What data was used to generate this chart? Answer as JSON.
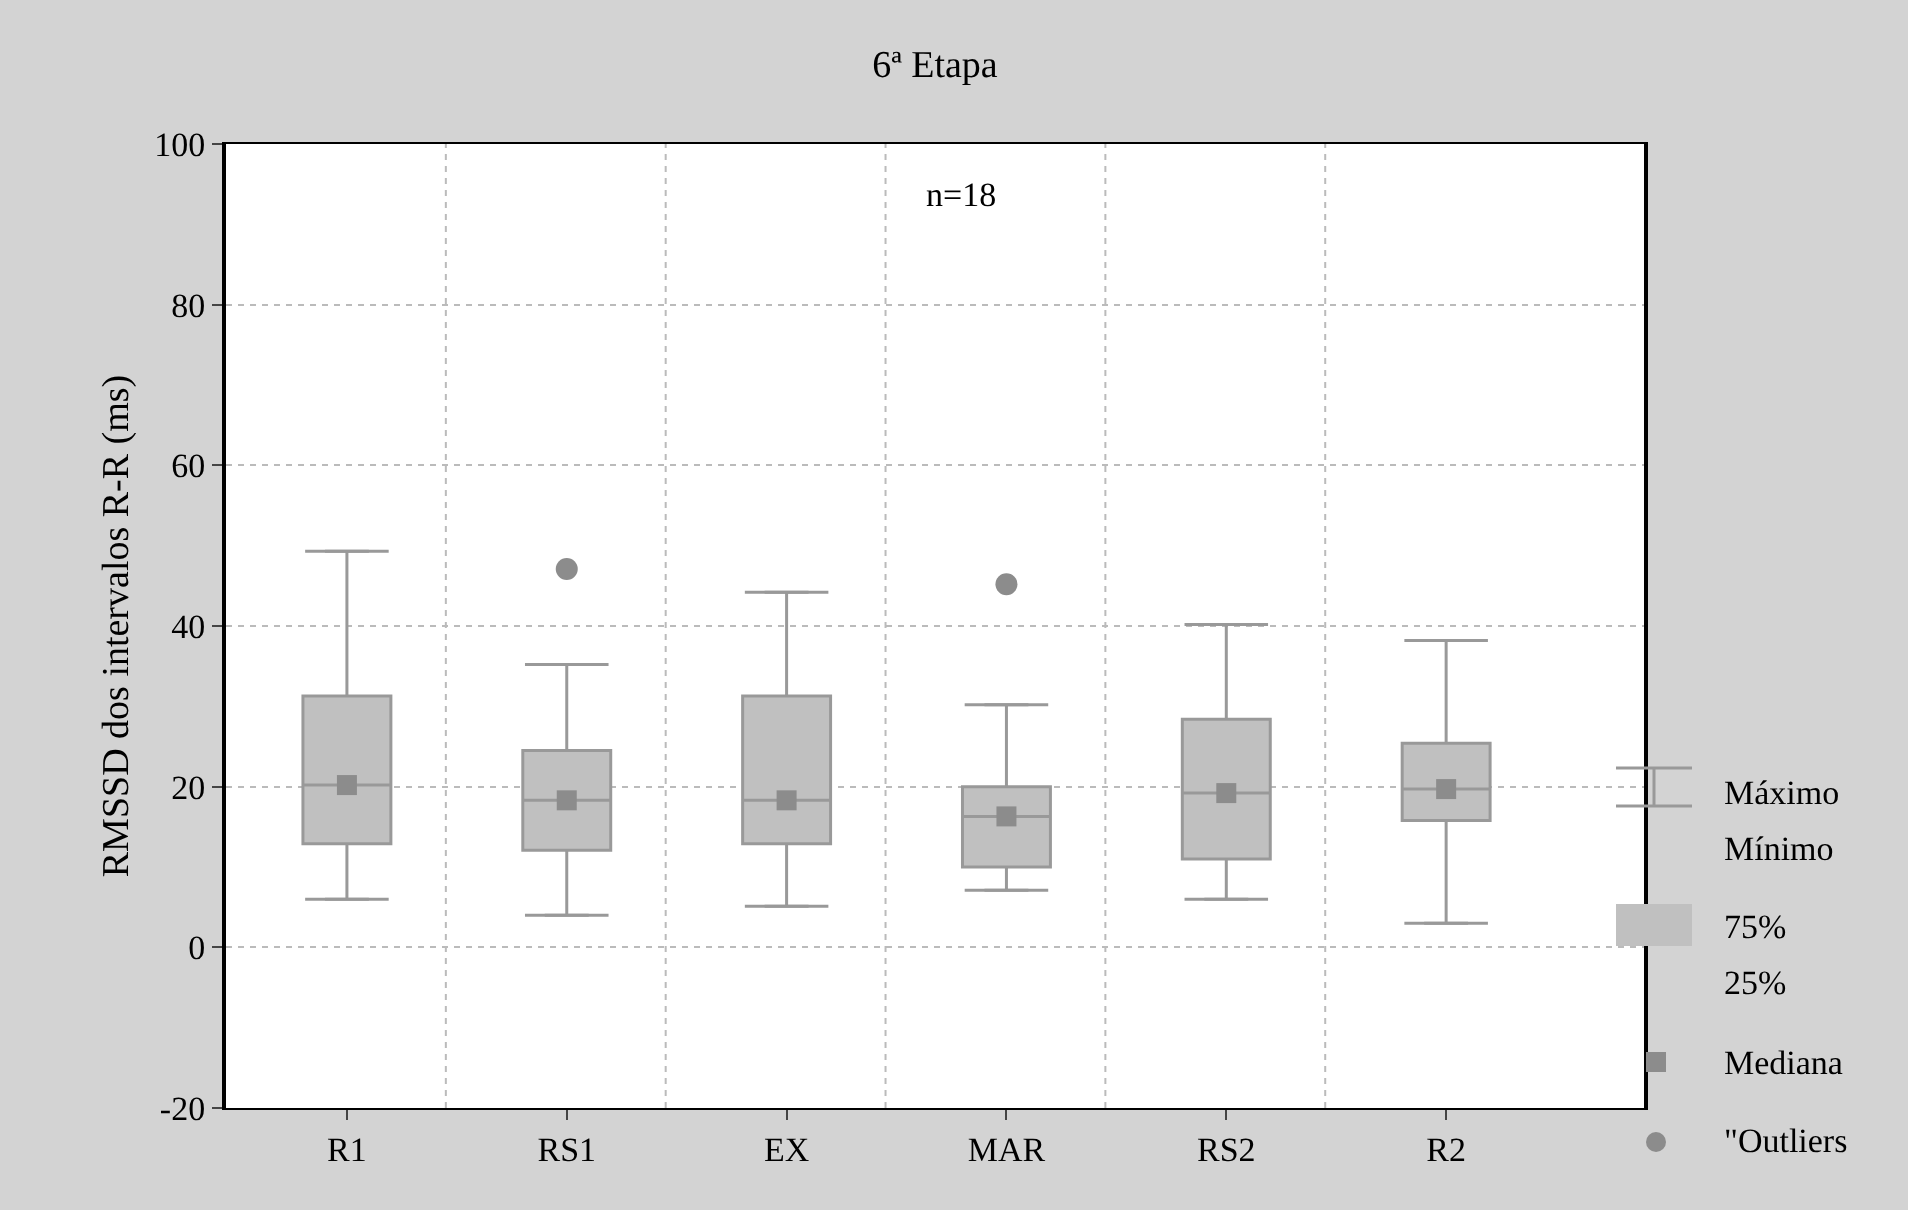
{
  "chart_data": {
    "type": "box",
    "title": "6ª Etapa",
    "ylabel": "RMSSD dos intervalos R-R (ms)",
    "categories": [
      "R1",
      "RS1",
      "EX",
      "MAR",
      "RS2",
      "R2"
    ],
    "series": [
      {
        "color": "#c0c0c0",
        "boxes": [
          {
            "low": 6,
            "q1": 12.9,
            "median": 20.2,
            "q3": 31.3,
            "high": 49.3
          },
          {
            "low": 4,
            "q1": 12.1,
            "median": 18.3,
            "q3": 24.5,
            "high": 35.2,
            "outliers": [
              47.1
            ]
          },
          {
            "low": 5.1,
            "q1": 12.9,
            "median": 18.3,
            "q3": 31.3,
            "high": 44.2
          },
          {
            "low": 7.1,
            "q1": 10,
            "median": 16.3,
            "q3": 20,
            "high": 30.2,
            "outliers": [
              45.2
            ]
          },
          {
            "low": 6,
            "q1": 11,
            "median": 19.2,
            "q3": 28.4,
            "high": 40.2
          },
          {
            "low": 3,
            "q1": 15.8,
            "median": 19.7,
            "q3": 25.4,
            "high": 38.2
          }
        ]
      },
      {
        "type": "scatter",
        "marker": "square",
        "color": "#8c8c8c",
        "x": [
          "R1",
          "RS1",
          "EX",
          "MAR",
          "RS2",
          "R2"
        ],
        "values": [
          20.2,
          18.3,
          18.3,
          16.3,
          19.2,
          19.7
        ]
      }
    ],
    "ylim": [
      -20,
      100
    ],
    "yticks": [
      -20,
      0,
      20,
      40,
      60,
      80,
      100
    ],
    "grid": true,
    "annotations": [
      "n=18",
      "Máximo",
      "Mínimo",
      "75%",
      "25%",
      "Mediana",
      "\"Outliers"
    ]
  }
}
